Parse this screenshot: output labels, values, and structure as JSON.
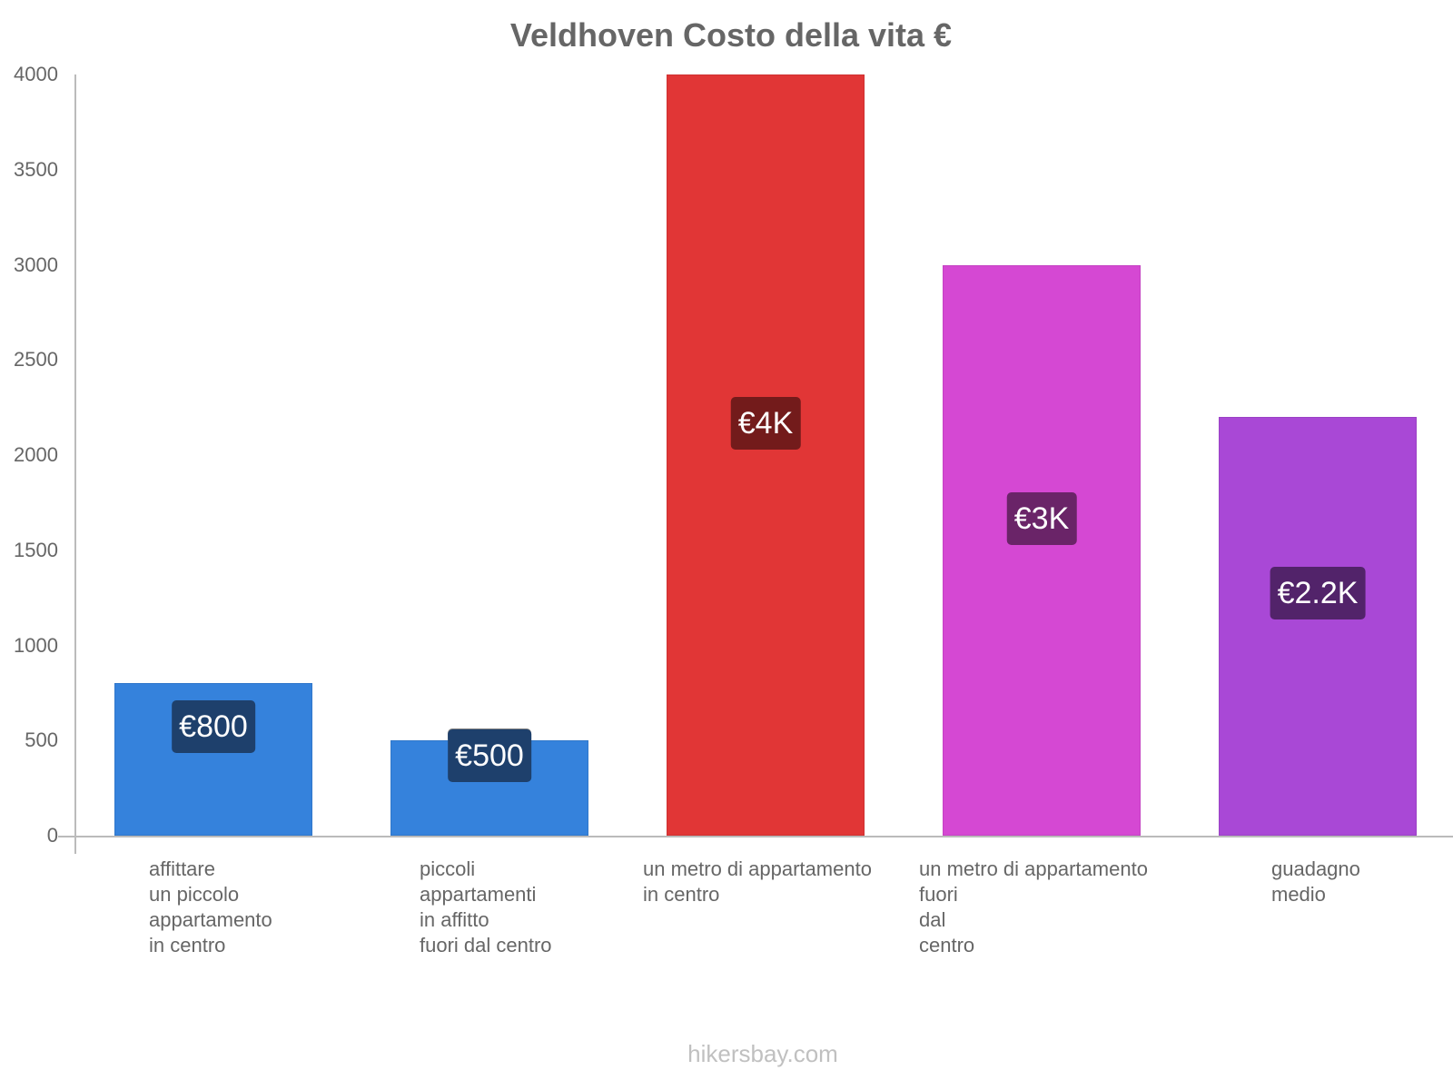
{
  "chart_data": {
    "type": "bar",
    "title": "Veldhoven Costo della vita €",
    "xlabel": "",
    "ylabel": "",
    "ylim": [
      0,
      4000
    ],
    "yticks": [
      "0",
      "500",
      "1000",
      "1500",
      "2000",
      "2500",
      "3000",
      "3500",
      "4000"
    ],
    "grid": false,
    "legend": null,
    "categories": [
      "affittare un piccolo appartamento in centro",
      "piccoli appartamenti in affitto fuori dal centro",
      "un metro di appartamento in centro",
      "un metro di appartamento fuori dal centro",
      "guadagno medio"
    ],
    "category_lines": [
      [
        "affittare",
        "un piccolo",
        "appartamento",
        "in centro"
      ],
      [
        "piccoli",
        "appartamenti",
        "in affitto",
        "fuori dal centro"
      ],
      [
        "un metro di appartamento",
        "in centro"
      ],
      [
        "un metro di appartamento",
        "fuori",
        "dal",
        "centro"
      ],
      [
        "guadagno",
        "medio"
      ]
    ],
    "values": [
      800,
      500,
      4000,
      3000,
      2200
    ],
    "value_labels": [
      "€800",
      "€500",
      "€4K",
      "€3K",
      "€2.2K"
    ],
    "colors": [
      "#3582dc",
      "#3582dc",
      "#e13636",
      "#d548d3",
      "#a948d6"
    ],
    "label_bg_colors": [
      "#1e406c",
      "#1e406c",
      "#731b1b",
      "#6a2468",
      "#52236a"
    ]
  },
  "footer": {
    "source": "hikersbay.com"
  }
}
